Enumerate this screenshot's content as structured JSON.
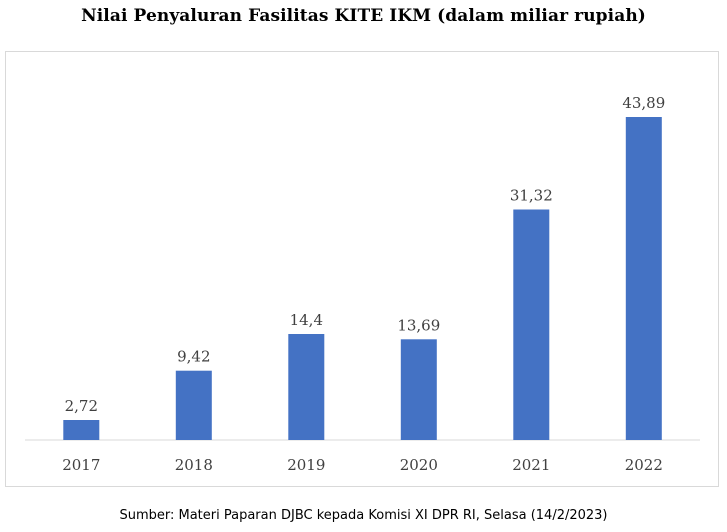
{
  "title": "Nilai Penyaluran Fasilitas KITE IKM (dalam miliar rupiah)",
  "source": "Sumber: Materi Paparan DJBC kepada Komisi XI DPR RI, Selasa (14/2/2023)",
  "colors": {
    "bar": "#4472c4",
    "axis": "#d9d9d9",
    "text": "#404040"
  },
  "chart_data": {
    "type": "bar",
    "title": "Nilai Penyaluran Fasilitas KITE IKM (dalam miliar rupiah)",
    "categories": [
      "2017",
      "2018",
      "2019",
      "2020",
      "2021",
      "2022"
    ],
    "values": [
      2.72,
      9.42,
      14.4,
      13.69,
      31.32,
      43.89
    ],
    "value_labels": [
      "2,72",
      "9,42",
      "14,4",
      "13,69",
      "31,32",
      "43,89"
    ],
    "xlabel": "",
    "ylabel": "",
    "ylim": [
      0,
      43.89
    ],
    "grid": false,
    "legend": "none"
  }
}
